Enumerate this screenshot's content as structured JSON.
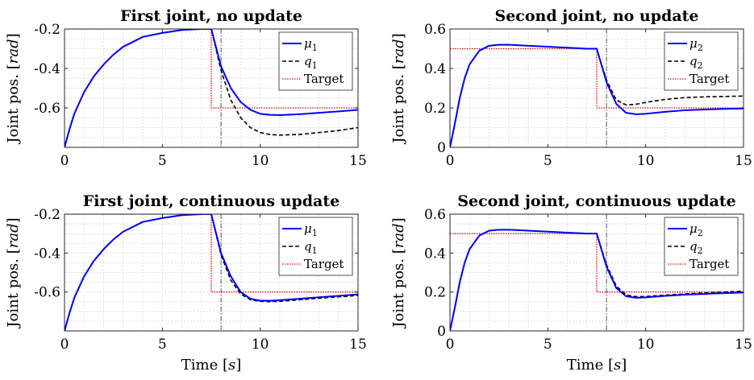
{
  "colors": {
    "mu": "#0000ff",
    "q": "#000000",
    "target": "#ff0000",
    "switch_line": "#555555",
    "grid": "#d9d9d9"
  },
  "chart_data": [
    {
      "type": "line",
      "title": "First joint, no update",
      "ylabel": "Joint pos. [rad]",
      "xlabel": "",
      "xlim": [
        0,
        15
      ],
      "ylim": [
        -0.8,
        -0.2
      ],
      "xticks": [
        "0",
        "5",
        "10",
        "15"
      ],
      "yticks": [
        "-0.2",
        "-0.4",
        "-0.6"
      ],
      "ytick_values": [
        -0.2,
        -0.4,
        -0.6
      ],
      "xtick_values": [
        0,
        5,
        10,
        15
      ],
      "grid": true,
      "legend": "top-right",
      "switch_time": 8,
      "series": [
        {
          "name": "μ1",
          "style": "solid",
          "x": [
            0,
            0.25,
            0.5,
            1,
            1.5,
            2,
            2.5,
            3,
            4,
            5,
            6,
            7,
            7.5,
            8,
            8.5,
            9,
            9.5,
            10,
            10.5,
            11,
            12,
            13,
            14,
            15
          ],
          "y": [
            -0.8,
            -0.71,
            -0.63,
            -0.52,
            -0.44,
            -0.38,
            -0.33,
            -0.29,
            -0.24,
            -0.22,
            -0.205,
            -0.2,
            -0.2,
            -0.39,
            -0.5,
            -0.57,
            -0.61,
            -0.63,
            -0.635,
            -0.637,
            -0.632,
            -0.625,
            -0.618,
            -0.61
          ]
        },
        {
          "name": "q1",
          "style": "dashed",
          "x": [
            0,
            0.25,
            0.5,
            1,
            1.5,
            2,
            2.5,
            3,
            4,
            5,
            6,
            7,
            7.5,
            8,
            8.5,
            9,
            9.5,
            10,
            10.5,
            11,
            12,
            13,
            14,
            15
          ],
          "y": [
            -0.8,
            -0.71,
            -0.63,
            -0.52,
            -0.44,
            -0.38,
            -0.33,
            -0.29,
            -0.24,
            -0.22,
            -0.205,
            -0.2,
            -0.2,
            -0.41,
            -0.56,
            -0.65,
            -0.7,
            -0.725,
            -0.735,
            -0.738,
            -0.735,
            -0.725,
            -0.715,
            -0.7
          ]
        },
        {
          "name": "Target",
          "style": "dotted",
          "x": [
            0,
            7.5,
            7.5,
            15
          ],
          "y": [
            -0.2,
            -0.2,
            -0.6,
            -0.6
          ]
        }
      ]
    },
    {
      "type": "line",
      "title": "Second joint, no update",
      "ylabel": "Joint pos. [rad]",
      "xlabel": "",
      "xlim": [
        0,
        15
      ],
      "ylim": [
        0,
        0.6
      ],
      "xticks": [
        "0",
        "5",
        "10",
        "15"
      ],
      "yticks": [
        "0",
        "0.2",
        "0.4",
        "0.6"
      ],
      "ytick_values": [
        0,
        0.2,
        0.4,
        0.6
      ],
      "xtick_values": [
        0,
        5,
        10,
        15
      ],
      "grid": true,
      "legend": "top-right",
      "switch_time": 8,
      "series": [
        {
          "name": "μ2",
          "style": "solid",
          "x": [
            0,
            0.25,
            0.5,
            0.75,
            1,
            1.5,
            2,
            2.5,
            3,
            4,
            5,
            6,
            7,
            7.5,
            8,
            8.5,
            9,
            9.5,
            10,
            11,
            12,
            13,
            14,
            15
          ],
          "y": [
            0,
            0.12,
            0.25,
            0.35,
            0.42,
            0.49,
            0.515,
            0.52,
            0.52,
            0.515,
            0.51,
            0.505,
            0.5,
            0.5,
            0.33,
            0.22,
            0.175,
            0.168,
            0.17,
            0.18,
            0.188,
            0.192,
            0.195,
            0.197
          ]
        },
        {
          "name": "q2",
          "style": "dashed",
          "x": [
            0,
            0.25,
            0.5,
            0.75,
            1,
            1.5,
            2,
            2.5,
            3,
            4,
            5,
            6,
            7,
            7.5,
            8,
            8.5,
            9,
            9.5,
            10,
            11,
            12,
            13,
            14,
            15
          ],
          "y": [
            0,
            0.12,
            0.25,
            0.35,
            0.42,
            0.49,
            0.515,
            0.52,
            0.52,
            0.515,
            0.51,
            0.505,
            0.5,
            0.5,
            0.34,
            0.24,
            0.215,
            0.218,
            0.228,
            0.243,
            0.252,
            0.256,
            0.258,
            0.26
          ]
        },
        {
          "name": "Target",
          "style": "dotted",
          "x": [
            0,
            7.5,
            7.5,
            15
          ],
          "y": [
            0.5,
            0.5,
            0.2,
            0.2
          ]
        }
      ]
    },
    {
      "type": "line",
      "title": "First joint, continuous update",
      "ylabel": "Joint pos. [rad]",
      "xlabel": "Time [s]",
      "xlim": [
        0,
        15
      ],
      "ylim": [
        -0.8,
        -0.2
      ],
      "xticks": [
        "0",
        "5",
        "10",
        "15"
      ],
      "yticks": [
        "-0.2",
        "-0.4",
        "-0.6"
      ],
      "ytick_values": [
        -0.2,
        -0.4,
        -0.6
      ],
      "xtick_values": [
        0,
        5,
        10,
        15
      ],
      "grid": true,
      "legend": "top-right",
      "switch_time": 8,
      "series": [
        {
          "name": "μ1",
          "style": "solid",
          "x": [
            0,
            0.25,
            0.5,
            1,
            1.5,
            2,
            2.5,
            3,
            4,
            5,
            6,
            7,
            7.5,
            8,
            8.5,
            9,
            9.5,
            10,
            10.5,
            11,
            12,
            13,
            14,
            15
          ],
          "y": [
            -0.8,
            -0.71,
            -0.63,
            -0.52,
            -0.44,
            -0.38,
            -0.33,
            -0.29,
            -0.24,
            -0.22,
            -0.205,
            -0.2,
            -0.2,
            -0.4,
            -0.52,
            -0.6,
            -0.635,
            -0.645,
            -0.645,
            -0.642,
            -0.635,
            -0.627,
            -0.62,
            -0.612
          ]
        },
        {
          "name": "q1",
          "style": "dashed",
          "x": [
            0,
            0.25,
            0.5,
            1,
            1.5,
            2,
            2.5,
            3,
            4,
            5,
            6,
            7,
            7.5,
            8,
            8.5,
            9,
            9.5,
            10,
            10.5,
            11,
            12,
            13,
            14,
            15
          ],
          "y": [
            -0.8,
            -0.71,
            -0.63,
            -0.52,
            -0.44,
            -0.38,
            -0.33,
            -0.29,
            -0.24,
            -0.22,
            -0.205,
            -0.2,
            -0.2,
            -0.41,
            -0.54,
            -0.61,
            -0.64,
            -0.648,
            -0.65,
            -0.648,
            -0.64,
            -0.632,
            -0.625,
            -0.618
          ]
        },
        {
          "name": "Target",
          "style": "dotted",
          "x": [
            0,
            7.5,
            7.5,
            15
          ],
          "y": [
            -0.2,
            -0.2,
            -0.6,
            -0.6
          ]
        }
      ]
    },
    {
      "type": "line",
      "title": "Second joint, continuous update",
      "ylabel": "Joint pos. [rad]",
      "xlabel": "Time [s]",
      "xlim": [
        0,
        15
      ],
      "ylim": [
        0,
        0.6
      ],
      "xticks": [
        "0",
        "5",
        "10",
        "15"
      ],
      "yticks": [
        "0",
        "0.2",
        "0.4",
        "0.6"
      ],
      "ytick_values": [
        0,
        0.2,
        0.4,
        0.6
      ],
      "xtick_values": [
        0,
        5,
        10,
        15
      ],
      "grid": true,
      "legend": "top-right",
      "switch_time": 8,
      "series": [
        {
          "name": "μ2",
          "style": "solid",
          "x": [
            0,
            0.25,
            0.5,
            0.75,
            1,
            1.5,
            2,
            2.5,
            3,
            4,
            5,
            6,
            7,
            7.5,
            8,
            8.5,
            9,
            9.5,
            10,
            11,
            12,
            13,
            14,
            15
          ],
          "y": [
            0,
            0.12,
            0.25,
            0.35,
            0.42,
            0.49,
            0.515,
            0.52,
            0.52,
            0.515,
            0.51,
            0.505,
            0.5,
            0.5,
            0.33,
            0.22,
            0.178,
            0.17,
            0.172,
            0.18,
            0.186,
            0.19,
            0.194,
            0.197
          ]
        },
        {
          "name": "q2",
          "style": "dashed",
          "x": [
            0,
            0.25,
            0.5,
            0.75,
            1,
            1.5,
            2,
            2.5,
            3,
            4,
            5,
            6,
            7,
            7.5,
            8,
            8.5,
            9,
            9.5,
            10,
            11,
            12,
            13,
            14,
            15
          ],
          "y": [
            0,
            0.12,
            0.25,
            0.35,
            0.42,
            0.49,
            0.515,
            0.52,
            0.52,
            0.515,
            0.51,
            0.505,
            0.5,
            0.5,
            0.34,
            0.23,
            0.185,
            0.176,
            0.177,
            0.184,
            0.19,
            0.195,
            0.2,
            0.204
          ]
        },
        {
          "name": "Target",
          "style": "dotted",
          "x": [
            0,
            7.5,
            7.5,
            15
          ],
          "y": [
            0.5,
            0.5,
            0.2,
            0.2
          ]
        }
      ]
    }
  ]
}
